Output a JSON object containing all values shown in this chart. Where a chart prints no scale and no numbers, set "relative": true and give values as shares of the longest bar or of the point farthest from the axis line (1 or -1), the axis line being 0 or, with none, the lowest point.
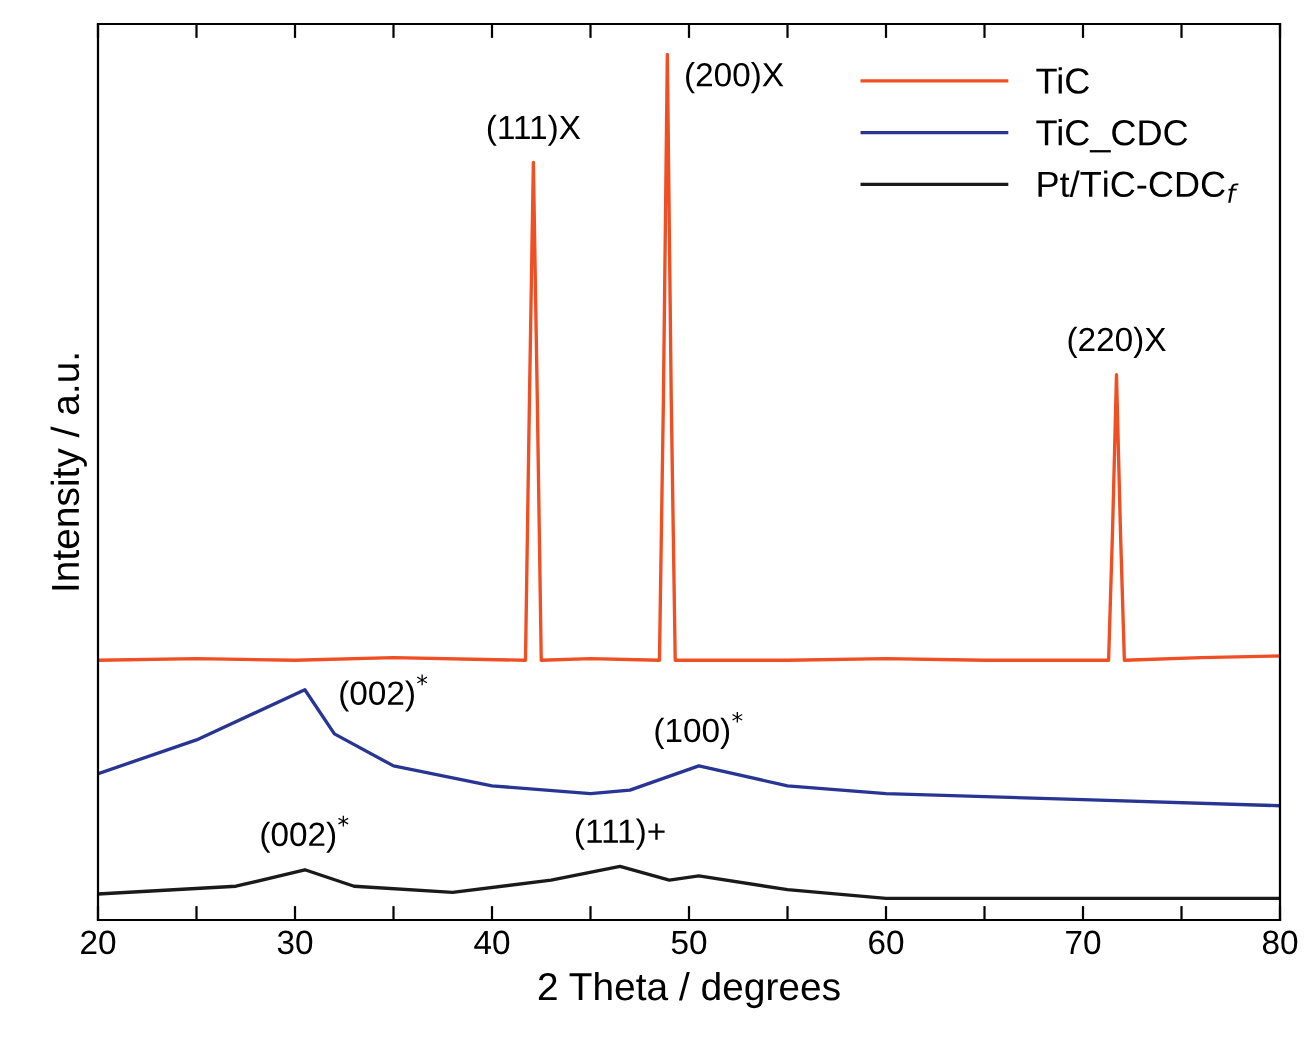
{
  "chart_data": {
    "type": "line",
    "relative": true,
    "xlabel": "2 Theta / degrees",
    "ylabel": "Intensity / a.u.",
    "xlim": [
      20,
      80
    ],
    "xticks": [
      20,
      {
        "value": 25,
        "label": null
      },
      30,
      {
        "value": 35,
        "label": null
      },
      40,
      {
        "value": 45,
        "label": null
      },
      50,
      {
        "value": 55,
        "label": null
      },
      60,
      {
        "value": 65,
        "label": null
      },
      70,
      {
        "value": 75,
        "label": null
      },
      80
    ],
    "legend": "top right",
    "grid": false,
    "marker": "none",
    "line_style": "solid",
    "series": [
      {
        "name": "TiC",
        "color": "#f04e23",
        "x": [
          20,
          25,
          30,
          35,
          41.7,
          41.9,
          42.1,
          42.3,
          42.5,
          45,
          48.5,
          48.7,
          48.9,
          49.1,
          49.3,
          55,
          60,
          65,
          71.3,
          71.5,
          71.7,
          71.9,
          72.1,
          76,
          80
        ],
        "values": [
          0.3,
          0.302,
          0.3,
          0.303,
          0.3,
          0.6,
          0.875,
          0.6,
          0.3,
          0.302,
          0.3,
          0.6,
          1,
          0.6,
          0.3,
          0.3,
          0.302,
          0.3,
          0.3,
          0.45,
          0.63,
          0.45,
          0.3,
          0.303,
          0.305
        ]
      },
      {
        "name": "TiC_CDC",
        "color": "#283593",
        "x": [
          20,
          25,
          30.5,
          32,
          35,
          40,
          45,
          47,
          50.5,
          55,
          60,
          70,
          80
        ],
        "values": [
          0.169,
          0.208,
          0.266,
          0.215,
          0.178,
          0.155,
          0.146,
          0.15,
          0.178,
          0.155,
          0.146,
          0.139,
          0.132
        ]
      },
      {
        "name": "Pt/TiC-CDC$_{f}$",
        "color": "#1a1a1a",
        "x": [
          20,
          27,
          30.5,
          33,
          38,
          43,
          46.5,
          49,
          50.5,
          55,
          60,
          80
        ],
        "values": [
          0.03,
          0.039,
          0.058,
          0.039,
          0.032,
          0.046,
          0.062,
          0.046,
          0.051,
          0.035,
          0.025,
          0.025
        ]
      }
    ],
    "annotations": [
      {
        "text": "(111)X",
        "x": 42.1,
        "y": 0.875
      },
      {
        "text": "(200)X",
        "x": 48.9,
        "y": 1
      },
      {
        "text": "(220)X",
        "x": 71.7,
        "y": 0.63
      },
      {
        "text": "(002)$^{*}$",
        "x": 30.5,
        "y": 0.266
      },
      {
        "text": "(100)$^{*}$",
        "x": 50.5,
        "y": 0.178
      },
      {
        "text": "(002)$^{*}$",
        "x": 30.5,
        "y": 0.058
      },
      {
        "text": "(111)+",
        "x": 46.5,
        "y": 0.062
      }
    ]
  }
}
